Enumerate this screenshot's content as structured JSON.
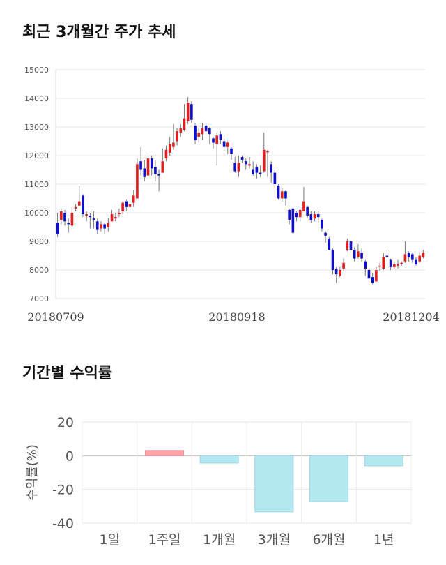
{
  "titles": {
    "trend": "최근 3개월간 주가 추세",
    "returns": "기간별 수익률"
  },
  "chart_data": [
    {
      "type": "candlestick",
      "title": "최근 3개월간 주가 추세",
      "ylim": [
        7000,
        15000
      ],
      "y_ticks": [
        7000,
        8000,
        9000,
        10000,
        11000,
        12000,
        13000,
        14000,
        15000
      ],
      "x_tick_labels": [
        "20180709",
        "20180918",
        "20181204"
      ],
      "grid": true,
      "up_color": "#e02020",
      "down_color": "#1010c8",
      "candles": [
        [
          9650,
          9250,
          10000,
          9150
        ],
        [
          9750,
          10050,
          10150,
          9600
        ],
        [
          10000,
          9700,
          10100,
          9550
        ],
        [
          9650,
          9600,
          9800,
          9300
        ],
        [
          9550,
          10000,
          10200,
          9500
        ],
        [
          10150,
          10200,
          10300,
          10050
        ],
        [
          10250,
          10400,
          10950,
          10250
        ],
        [
          10600,
          9950,
          10650,
          9850
        ],
        [
          9900,
          9950,
          10050,
          9700
        ],
        [
          9900,
          9850,
          10000,
          9450
        ],
        [
          9800,
          9750,
          10050,
          9450
        ],
        [
          9700,
          9400,
          9800,
          9250
        ],
        [
          9450,
          9600,
          9700,
          9350
        ],
        [
          9600,
          9450,
          9650,
          9250
        ],
        [
          9500,
          9650,
          9800,
          9350
        ],
        [
          9700,
          9950,
          10100,
          9700
        ],
        [
          9800,
          9850,
          10000,
          9700
        ],
        [
          9950,
          10000,
          10150,
          9850
        ],
        [
          10050,
          10350,
          10400,
          9950
        ],
        [
          10400,
          10200,
          10450,
          10050
        ],
        [
          10200,
          10300,
          10400,
          10050
        ],
        [
          10350,
          10600,
          10800,
          10200
        ],
        [
          10500,
          11700,
          11900,
          10500
        ],
        [
          11800,
          11500,
          12300,
          11300
        ],
        [
          11550,
          11250,
          11850,
          11100
        ],
        [
          11300,
          11900,
          12100,
          11200
        ],
        [
          11900,
          11550,
          12000,
          11300
        ],
        [
          11600,
          11350,
          11850,
          11100
        ],
        [
          11350,
          11300,
          11500,
          10750
        ],
        [
          11400,
          11800,
          12250,
          11400
        ],
        [
          11900,
          12200,
          12350,
          11800
        ],
        [
          12100,
          12400,
          12650,
          12000
        ],
        [
          12300,
          12450,
          13100,
          12200
        ],
        [
          12500,
          12850,
          12950,
          12350
        ],
        [
          12800,
          12950,
          13100,
          12650
        ],
        [
          12900,
          13300,
          13800,
          12850
        ],
        [
          13200,
          13850,
          14050,
          13100
        ],
        [
          13800,
          13250,
          13900,
          13150
        ],
        [
          13050,
          12550,
          13150,
          12400
        ],
        [
          12650,
          12800,
          12950,
          12450
        ],
        [
          12750,
          12950,
          13150,
          12550
        ],
        [
          13050,
          12850,
          13150,
          12700
        ],
        [
          12950,
          12750,
          13000,
          12400
        ],
        [
          12600,
          12450,
          12650,
          12250
        ],
        [
          12400,
          12700,
          12800,
          11650
        ],
        [
          12750,
          12550,
          12850,
          12400
        ],
        [
          12500,
          12300,
          12600,
          12150
        ],
        [
          12300,
          12450,
          12500,
          12050
        ],
        [
          12250,
          12050,
          12300,
          11850
        ],
        [
          11750,
          11450,
          11950,
          11400
        ],
        [
          11450,
          11750,
          12000,
          11250
        ],
        [
          11950,
          11850,
          12000,
          11750
        ],
        [
          11800,
          11700,
          11900,
          11500
        ],
        [
          11650,
          11700,
          11950,
          11550
        ],
        [
          11500,
          11350,
          11800,
          11300
        ],
        [
          11600,
          11400,
          11700,
          11200
        ],
        [
          11400,
          11350,
          11650,
          11250
        ],
        [
          11450,
          12200,
          12800,
          11400
        ],
        [
          12150,
          12150,
          12200,
          11250
        ],
        [
          11700,
          11400,
          11800,
          11050
        ],
        [
          11400,
          11000,
          11500,
          10850
        ],
        [
          10950,
          10500,
          11000,
          10450
        ],
        [
          10500,
          10750,
          10850,
          10400
        ],
        [
          10750,
          10500,
          10800,
          10250
        ],
        [
          10100,
          9750,
          10150,
          9600
        ],
        [
          10150,
          9300,
          10200,
          9250
        ],
        [
          10000,
          9850,
          10050,
          9700
        ],
        [
          9850,
          10100,
          10150,
          9700
        ],
        [
          10050,
          10400,
          10900,
          10050
        ],
        [
          10200,
          9900,
          10250,
          9800
        ],
        [
          9950,
          9750,
          10050,
          9650
        ],
        [
          9800,
          9950,
          10050,
          9700
        ],
        [
          9950,
          9850,
          10050,
          9650
        ],
        [
          9750,
          9450,
          9800,
          9350
        ],
        [
          9300,
          9200,
          9350,
          8950
        ],
        [
          9100,
          8700,
          9150,
          8700
        ],
        [
          8700,
          8000,
          8750,
          7850
        ],
        [
          8050,
          7850,
          8100,
          7550
        ],
        [
          7800,
          8000,
          8100,
          7750
        ],
        [
          8050,
          8250,
          8400,
          7950
        ],
        [
          8700,
          9000,
          9100,
          8650
        ],
        [
          9000,
          8700,
          9050,
          8600
        ],
        [
          8700,
          8400,
          8800,
          8300
        ],
        [
          8450,
          8650,
          8900,
          8400
        ],
        [
          8600,
          8400,
          8750,
          8300
        ],
        [
          8300,
          8050,
          8350,
          7800
        ],
        [
          8000,
          7700,
          8050,
          7600
        ],
        [
          7750,
          7550,
          7900,
          7500
        ],
        [
          7600,
          8000,
          8100,
          7600
        ],
        [
          8150,
          8150,
          8250,
          7950
        ],
        [
          8050,
          8450,
          8600,
          8000
        ],
        [
          8500,
          8450,
          8700,
          8300
        ],
        [
          8350,
          8100,
          8400,
          8000
        ],
        [
          8100,
          8200,
          8300,
          8050
        ],
        [
          8150,
          8200,
          8350,
          8050
        ],
        [
          8250,
          8250,
          8300,
          8150
        ],
        [
          8300,
          8550,
          9000,
          8250
        ],
        [
          8600,
          8450,
          8650,
          8300
        ],
        [
          8550,
          8350,
          8600,
          8250
        ],
        [
          8350,
          8200,
          8450,
          8150
        ],
        [
          8300,
          8500,
          8650,
          8250
        ],
        [
          8450,
          8600,
          8700,
          8400
        ]
      ]
    },
    {
      "type": "bar",
      "title": "기간별 수익률",
      "ylabel": "수익률(%)",
      "categories": [
        "1일",
        "1주일",
        "1개월",
        "3개월",
        "6개월",
        "1년"
      ],
      "values": [
        0,
        3.1,
        -4.4,
        -33.3,
        -27.2,
        -6.0
      ],
      "ylim": [
        -40,
        20
      ],
      "y_ticks": [
        -40,
        -20,
        0,
        20
      ],
      "grid": true,
      "positive_color": "#ffa3a8",
      "negative_color": "#b5e9f2"
    }
  ]
}
